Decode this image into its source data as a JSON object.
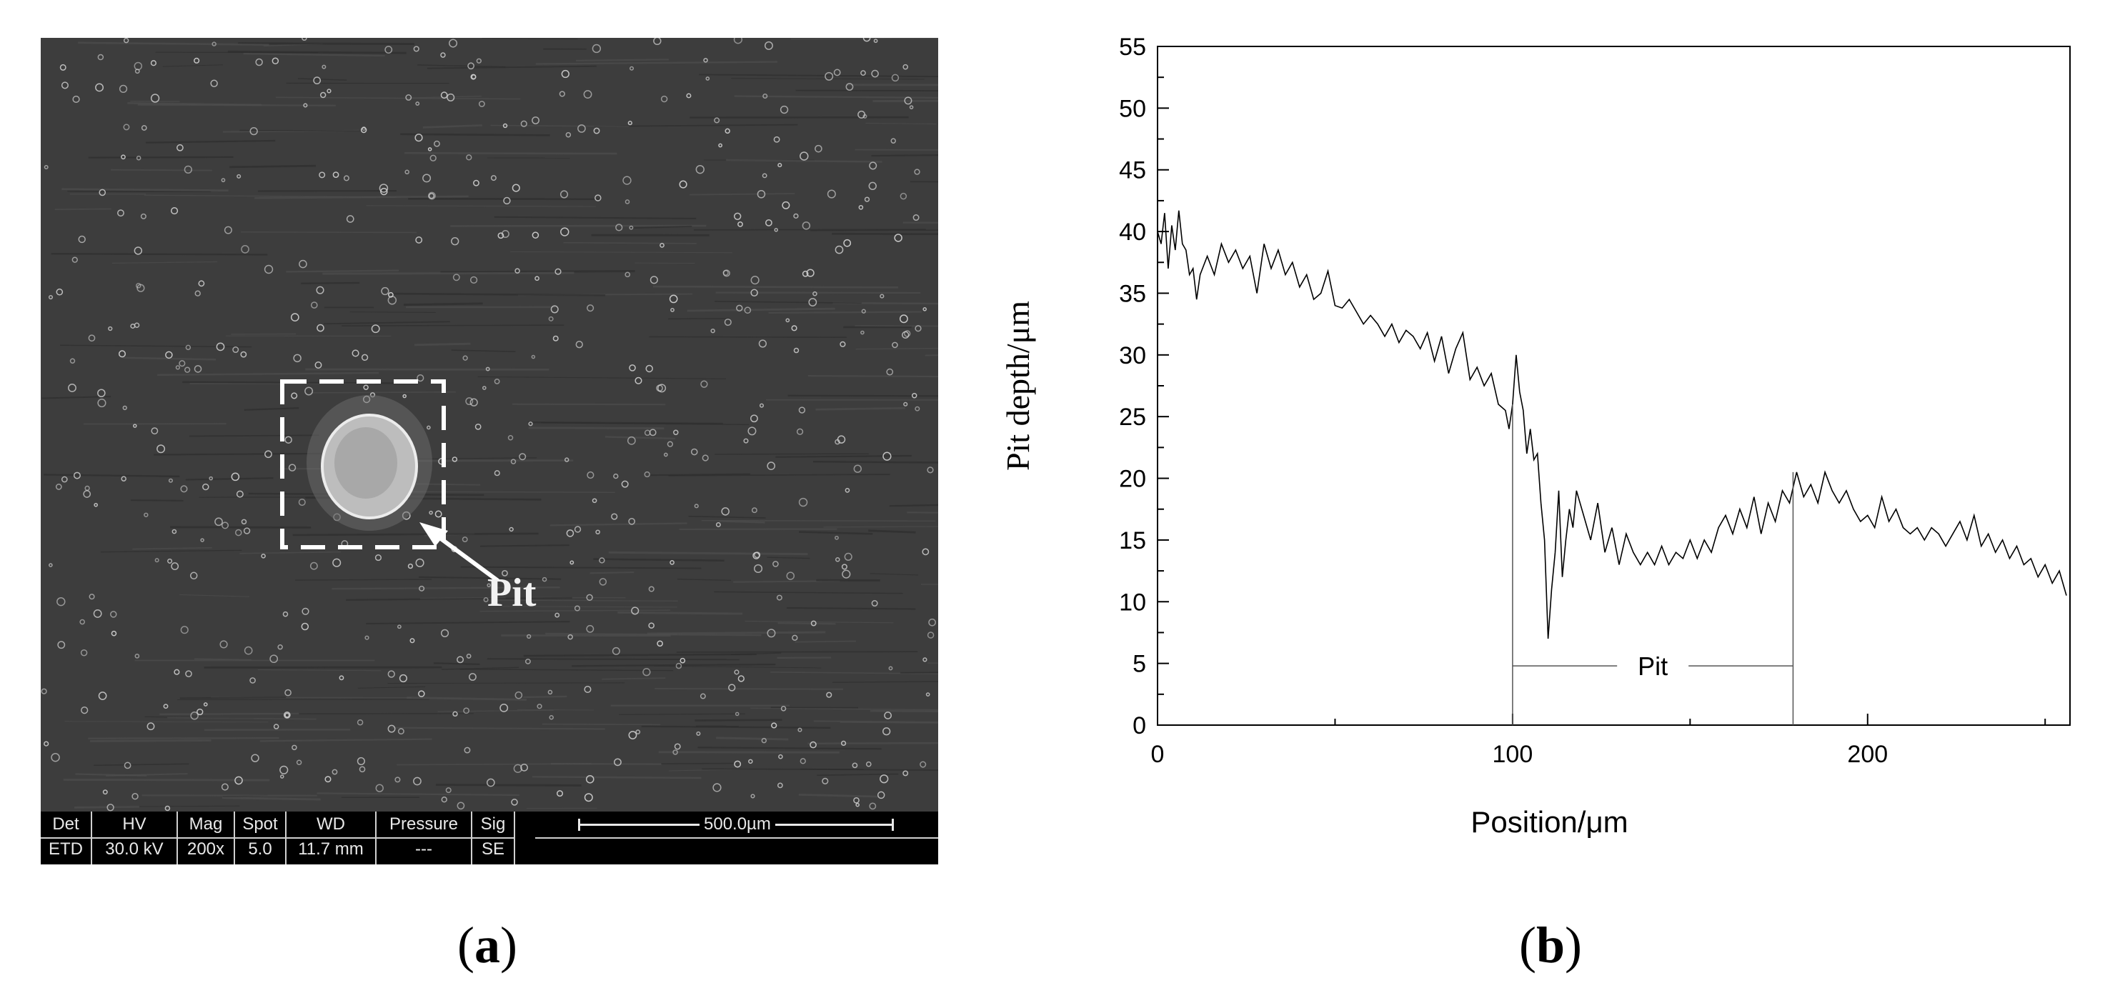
{
  "panel_a": {
    "label_open": "(",
    "label_letter": "a",
    "label_close": ")",
    "pit_annotation": "Pit",
    "databar": {
      "columns": [
        {
          "head": "Det",
          "value": "ETD"
        },
        {
          "head": "HV",
          "value": "30.0 kV"
        },
        {
          "head": "Mag",
          "value": "200x"
        },
        {
          "head": "Spot",
          "value": "5.0"
        },
        {
          "head": "WD",
          "value": "11.7 mm"
        },
        {
          "head": "Pressure",
          "value": "---"
        },
        {
          "head": "Sig",
          "value": "SE"
        }
      ],
      "scale_bar": "500.0µm"
    }
  },
  "panel_b": {
    "label_open": "(",
    "label_letter": "b",
    "label_close": ")"
  },
  "chart_data": {
    "type": "line",
    "title": "",
    "xlabel": "Position/μm",
    "ylabel": "Pit depth/μm",
    "xlim": [
      0,
      257
    ],
    "ylim": [
      0,
      55
    ],
    "x_ticks": [
      0,
      100,
      200
    ],
    "y_ticks": [
      0,
      5,
      10,
      15,
      20,
      25,
      30,
      35,
      40,
      45,
      50,
      55
    ],
    "grid": false,
    "series": [
      {
        "x": [
          0,
          1,
          2,
          3,
          4,
          5,
          6,
          7,
          8,
          9,
          10,
          11,
          12,
          14,
          16,
          18,
          20,
          22,
          24,
          26,
          28,
          30,
          32,
          34,
          36,
          38,
          40,
          42,
          44,
          46,
          48,
          50,
          52,
          54,
          56,
          58,
          60,
          62,
          64,
          66,
          68,
          70,
          72,
          74,
          76,
          78,
          80,
          82,
          84,
          86,
          88,
          90,
          92,
          94,
          96,
          98,
          99,
          100,
          101,
          102,
          103,
          104,
          105,
          106,
          107,
          108,
          109,
          110,
          111,
          112,
          113,
          114,
          115,
          116,
          117,
          118,
          120,
          122,
          124,
          126,
          128,
          130,
          132,
          134,
          136,
          138,
          140,
          142,
          144,
          146,
          148,
          150,
          152,
          154,
          156,
          158,
          160,
          162,
          164,
          166,
          168,
          170,
          172,
          174,
          176,
          178,
          180,
          182,
          184,
          186,
          188,
          190,
          192,
          194,
          196,
          198,
          200,
          202,
          204,
          206,
          208,
          210,
          212,
          214,
          216,
          218,
          220,
          222,
          224,
          226,
          228,
          230,
          232,
          234,
          236,
          238,
          240,
          242,
          244,
          246,
          248,
          250,
          252,
          254,
          256
        ],
        "y": [
          40,
          39,
          41.5,
          37,
          40.5,
          38.5,
          41.7,
          39,
          38.5,
          36.5,
          37,
          34.5,
          36.5,
          38,
          36.5,
          39,
          37.5,
          38.5,
          37,
          38,
          35,
          39,
          37,
          38.5,
          36.5,
          37.5,
          35.5,
          36.5,
          34.5,
          35,
          36.8,
          34,
          33.8,
          34.5,
          33.5,
          32.5,
          33.2,
          32.5,
          31.5,
          32.5,
          31,
          32,
          31.5,
          30.5,
          31.8,
          29.5,
          31.5,
          28.5,
          30.5,
          31.8,
          28,
          29,
          27.5,
          28.5,
          26,
          25.5,
          24,
          26,
          30,
          27,
          25.5,
          22,
          24,
          21.5,
          22,
          18,
          15,
          7,
          11,
          14,
          19,
          12,
          15,
          17.5,
          16,
          19,
          17,
          15,
          18,
          14,
          16,
          13,
          15.5,
          14,
          13,
          14,
          13,
          14.5,
          13,
          14,
          13.5,
          15,
          13.5,
          15,
          14,
          16,
          17,
          15.5,
          17.5,
          16,
          18.5,
          15.5,
          18,
          16.5,
          19,
          18,
          20.5,
          18.5,
          19.5,
          18,
          20.5,
          19,
          18,
          19,
          17.5,
          16.5,
          17,
          16,
          18.5,
          16.5,
          17.5,
          16,
          15.5,
          16,
          15,
          16,
          15.5,
          14.5,
          15.5,
          16.5,
          15,
          17,
          14.5,
          15.5,
          14,
          15,
          13.5,
          14.5,
          13,
          13.5,
          12,
          13,
          11.5,
          12.5,
          10.5
        ]
      }
    ],
    "annotations": [
      {
        "text": "Pit",
        "x_start": 100,
        "x_end": 179,
        "y": 4.8
      }
    ]
  }
}
